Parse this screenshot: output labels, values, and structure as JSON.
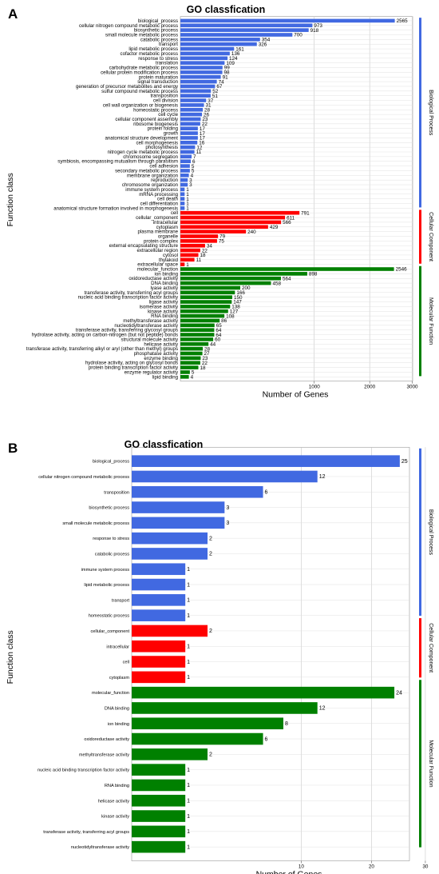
{
  "panels": {
    "a_letter": "A",
    "b_letter": "B"
  },
  "colors": {
    "biological_process": "#4169e1",
    "cellular_component": "#ff0000",
    "molecular_function": "#008000"
  },
  "chart_data": [
    {
      "type": "bar",
      "orientation": "horizontal",
      "title": "GO classfication",
      "xlabel": "Number of Genes",
      "ylabel": "Function class",
      "x_scale": "sqrt",
      "x_ticks": [
        1000,
        2000,
        3000
      ],
      "xlim": [
        0,
        3200
      ],
      "grid": true,
      "groups": [
        {
          "name": "Biological Process",
          "color": "#4169e1",
          "categories": [
            "biological_process",
            "cellular nitrogen compound metabolic process",
            "biosynthetic process",
            "small molecule metabolic process",
            "catabolic process",
            "transport",
            "lipid metabolic process",
            "cofactor metabolic process",
            "response to stress",
            "translation",
            "carbohydrate metabolic process",
            "cellular protein modification process",
            "protein maturation",
            "signal transduction",
            "generation of precursor metabolites and energy",
            "sulfur compound metabolic process",
            "transposition",
            "cell division",
            "cell wall organization or biogenesis",
            "homeostatic process",
            "cell cycle",
            "cellular component assembly",
            "ribosome biogenesis",
            "protein folding",
            "growth",
            "anatomical structure development",
            "cell morphogenesis",
            "photosynthesis",
            "nitrogen cycle metabolic process",
            "chromosome segregation",
            "symbiosis, encompassing mutualism through parasitism",
            "cell adhesion",
            "secondary metabolic process",
            "membrane organization",
            "reproduction",
            "chromosome organization",
            "immune system process",
            "mRNA processing",
            "cell death",
            "cell differentiation",
            "anatomical structure formation involved in morphogenesis"
          ],
          "values": [
            2565,
            973,
            918,
            700,
            354,
            326,
            161,
            136,
            124,
            109,
            99,
            98,
            91,
            74,
            67,
            52,
            51,
            37,
            31,
            28,
            26,
            23,
            22,
            17,
            17,
            17,
            16,
            12,
            11,
            7,
            6,
            5,
            5,
            4,
            3,
            3,
            1,
            1,
            1,
            1,
            1
          ]
        },
        {
          "name": "Cellular Component",
          "color": "#ff0000",
          "categories": [
            "cell",
            "cellular_component",
            "intracellular",
            "cytoplasm",
            "plasma membrane",
            "organelle",
            "protein complex",
            "external encapsulating structure",
            "extracellular region",
            "cytosol",
            "thylakoid",
            "extracellular space"
          ],
          "values": [
            791,
            611,
            566,
            429,
            240,
            79,
            75,
            34,
            22,
            18,
            11,
            1
          ]
        },
        {
          "name": "Molecular Function",
          "color": "#008000",
          "categories": [
            "molecular_function",
            "ion binding",
            "oxidoreductase activity",
            "DNA binding",
            "lyase activity",
            "transferase activity, transferring acyl groups",
            "nucleic acid binding transcription factor activity",
            "ligase activity",
            "isomerase activity",
            "kinase activity",
            "RNA binding",
            "methyltransferase activity",
            "nucleotidyltransferase activity",
            "transferase activity, transferring glycosyl groups",
            "hydrolase activity, acting on carbon-nitrogen (but not peptide) bonds",
            "structural molecule activity",
            "helicase activity",
            "transferase activity, transferring alkyl or aryl (other than methyl) groups",
            "phosphatase activity",
            "enzyme binding",
            "hydrolase activity, acting on glycosyl bonds",
            "protein binding transcription factor activity",
            "enzyme regulator activity",
            "lipid binding"
          ],
          "values": [
            2546,
            898,
            564,
            458,
            200,
            166,
            150,
            147,
            138,
            127,
            108,
            86,
            65,
            64,
            64,
            60,
            44,
            28,
            27,
            23,
            22,
            18,
            5,
            4
          ]
        }
      ]
    },
    {
      "type": "bar",
      "orientation": "horizontal",
      "title": "GO classfication",
      "xlabel": "Number of Genes",
      "ylabel": "Function class",
      "x_scale": "sqrt",
      "x_ticks": [
        10,
        20,
        30
      ],
      "xlim": [
        0,
        31
      ],
      "grid": true,
      "groups": [
        {
          "name": "Biological Process",
          "color": "#4169e1",
          "categories": [
            "biological_process",
            "cellular nitrogen compound metabolic process",
            "transposition",
            "biosynthetic process",
            "small molecule metabolic process",
            "response to stress",
            "catabolic process",
            "immune system process",
            "lipid metabolic process",
            "transport",
            "homeostatic process"
          ],
          "values": [
            25,
            12,
            6,
            3,
            3,
            2,
            2,
            1,
            1,
            1,
            1
          ]
        },
        {
          "name": "Cellular Component",
          "color": "#ff0000",
          "categories": [
            "cellular_component",
            "intracellular",
            "cell",
            "cytoplasm"
          ],
          "values": [
            2,
            1,
            1,
            1
          ]
        },
        {
          "name": "Molecular Function",
          "color": "#008000",
          "categories": [
            "molecular_function",
            "DNA binding",
            "ion binding",
            "oxidoreductase activity",
            "methyltransferase activity",
            "nucleic acid binding transcription factor activity",
            "RNA binding",
            "helicase activity",
            "kinase activity",
            "transferase activity, transferring acyl groups",
            "nucleotidyltransferase activity"
          ],
          "values": [
            24,
            12,
            8,
            6,
            2,
            1,
            1,
            1,
            1,
            1,
            1
          ]
        }
      ]
    }
  ]
}
